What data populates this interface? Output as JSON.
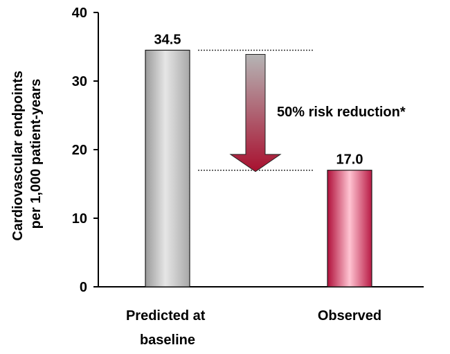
{
  "chart_data": {
    "type": "bar",
    "categories": [
      "Predicted at baseline",
      "Observed"
    ],
    "category_lines": [
      [
        "Predicted at",
        "baseline"
      ],
      [
        "Observed"
      ]
    ],
    "values": [
      34.5,
      17.0
    ],
    "value_labels": [
      "34.5",
      "17.0"
    ],
    "ylabel": "Cardiovascular endpoints per 1,000 patient-years",
    "ylabel_lines": [
      "Cardiovascular endpoints",
      "per 1,000 patient-years"
    ],
    "ylim": [
      0,
      40
    ],
    "yticks": [
      0,
      10,
      20,
      30,
      40
    ],
    "grid": false,
    "annotation": "50% risk reduction*",
    "colors": {
      "predicted_bar": [
        "#9a9a9a",
        "#e6e6e6",
        "#a8a8a8"
      ],
      "observed_bar": [
        "#b0103a",
        "#ffc4d2",
        "#b81a44"
      ],
      "arrow_top": "#b5b5b5",
      "arrow_bottom": "#a8102f"
    }
  }
}
